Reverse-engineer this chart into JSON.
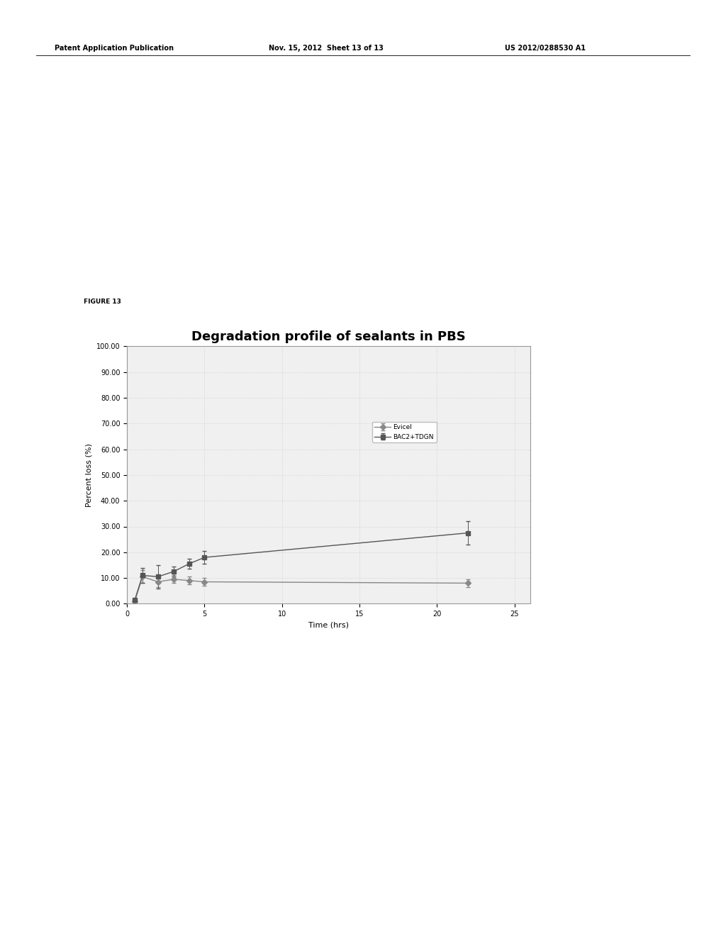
{
  "title": "Degradation profile of sealants in PBS",
  "xlabel": "Time (hrs)",
  "ylabel": "Percent loss (%)",
  "figure_label": "FIGURE 13",
  "header_left": "Patent Application Publication",
  "header_middle": "Nov. 15, 2012  Sheet 13 of 13",
  "header_right": "US 2012/0288530 A1",
  "ylim": [
    0,
    100
  ],
  "xlim": [
    0,
    26
  ],
  "yticks": [
    0,
    10,
    20,
    30,
    40,
    50,
    60,
    70,
    80,
    90,
    100
  ],
  "ytick_labels": [
    "0.00",
    "10.00",
    "20.00",
    "30.00",
    "40.00",
    "50.00",
    "60.00",
    "70.00",
    "80.00",
    "90.00",
    "100.00"
  ],
  "xticks": [
    0,
    5,
    10,
    15,
    20,
    25
  ],
  "series": [
    {
      "label": "Evicel",
      "x": [
        0.5,
        1,
        2,
        3,
        4,
        5,
        22
      ],
      "y": [
        1.0,
        10.5,
        8.5,
        9.5,
        9.0,
        8.5,
        8.0
      ],
      "yerr": [
        0.5,
        2.5,
        2.0,
        1.5,
        1.5,
        1.5,
        1.5
      ],
      "color": "#888888",
      "marker": "D",
      "markersize": 4,
      "linewidth": 1.0
    },
    {
      "label": "BAC2+TDGN",
      "x": [
        0.5,
        1,
        2,
        3,
        4,
        5,
        22
      ],
      "y": [
        1.5,
        11.0,
        10.5,
        12.5,
        15.5,
        18.0,
        27.5
      ],
      "yerr": [
        0.5,
        3.0,
        4.5,
        2.0,
        2.0,
        2.5,
        4.5
      ],
      "color": "#555555",
      "marker": "s",
      "markersize": 4,
      "linewidth": 1.0
    }
  ],
  "chart_bg": "#f0f0f0",
  "grid_color": "#cccccc",
  "grid_style": ":",
  "box_color": "#999999",
  "title_fontsize": 13,
  "axis_label_fontsize": 8,
  "tick_fontsize": 7,
  "figure_label_fontsize": 6.5,
  "header_fontsize": 7
}
